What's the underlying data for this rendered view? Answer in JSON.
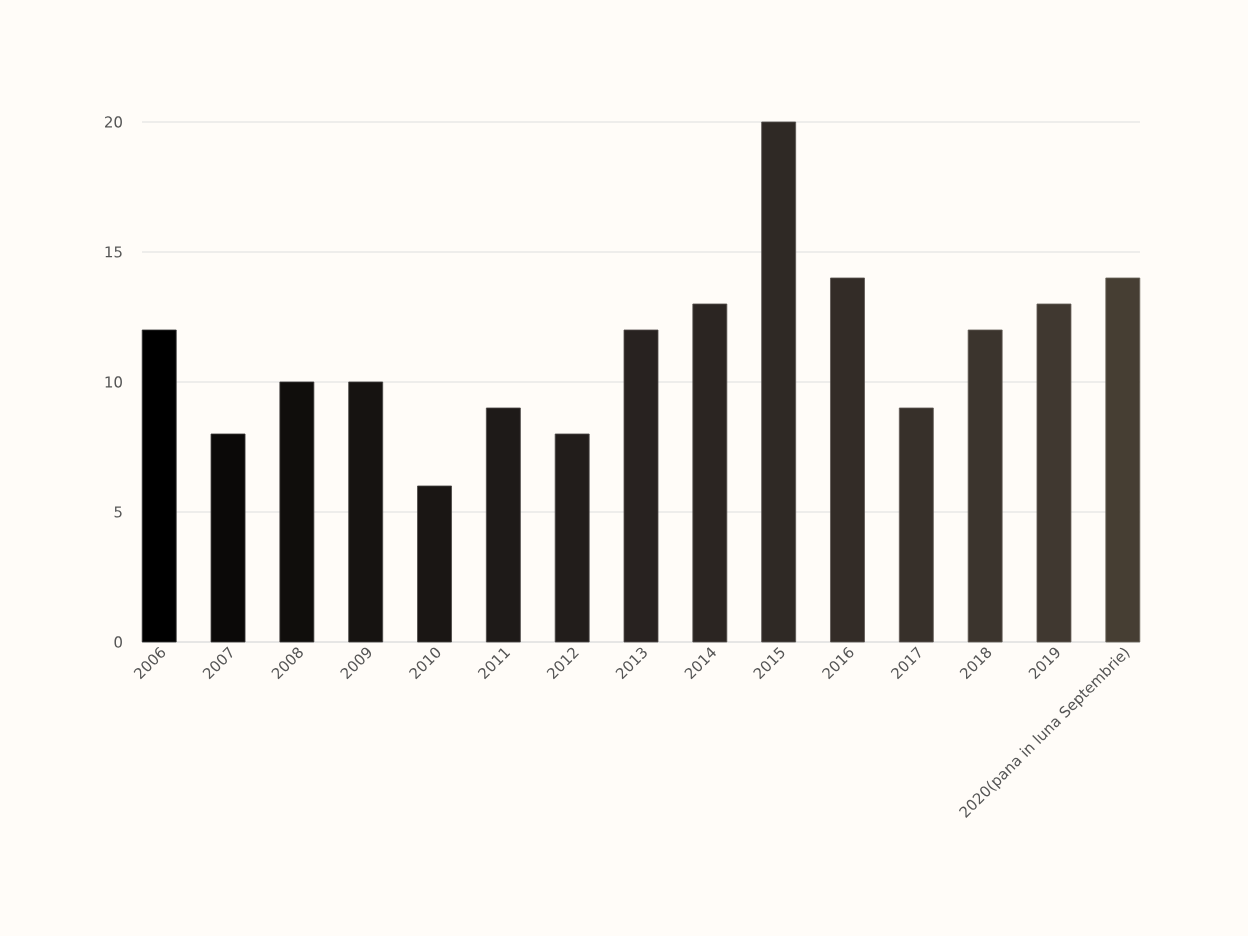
{
  "chart_data": {
    "type": "bar",
    "categories": [
      "2006",
      "2007",
      "2008",
      "2009",
      "2010",
      "2011",
      "2012",
      "2013",
      "2014",
      "2015",
      "2016",
      "2017",
      "2018",
      "2019",
      "2020(pana in luna Septembrie)"
    ],
    "values": [
      12,
      8,
      10,
      10,
      6,
      9,
      8,
      12,
      13,
      20,
      14,
      9,
      12,
      13,
      14
    ],
    "colors": [
      "#000000",
      "#0b0908",
      "#100e0c",
      "#161311",
      "#1a1614",
      "#1e1a18",
      "#221d1b",
      "#282220",
      "#2b2522",
      "#2f2925",
      "#332c27",
      "#37302a",
      "#3b342d",
      "#403830",
      "#463e33"
    ],
    "ylim": [
      0,
      20
    ],
    "yticks": [
      0,
      5,
      10,
      15,
      20
    ],
    "grid": "y"
  }
}
